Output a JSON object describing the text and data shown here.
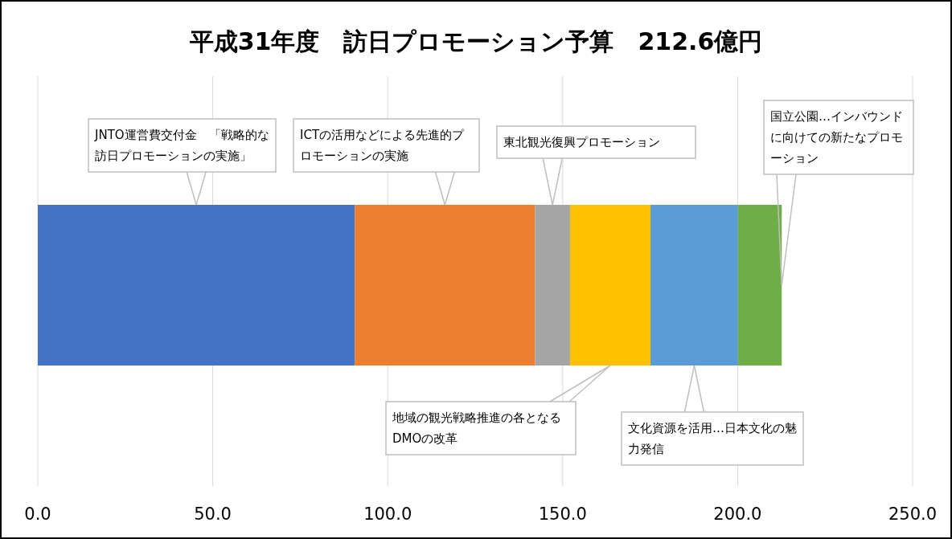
{
  "chart_data": {
    "type": "bar",
    "orientation": "horizontal",
    "stacked": true,
    "title": "平成31年度　訪日プロモーション予算　212.6億円",
    "categories": [
      null
    ],
    "series": [
      {
        "name": "JNTO運営費交付金　「戦略的な訪日プロモーションの実施」",
        "color": "#4472c4",
        "values": [
          90.6
        ]
      },
      {
        "name": "ICTの活用などによる先進的プロモーションの実施",
        "color": "#ed7d31",
        "values": [
          51.5
        ]
      },
      {
        "name": "東北観光復興プロモーション",
        "color": "#a5a5a5",
        "values": [
          10.0
        ]
      },
      {
        "name": "地域の観光戦略推進の各となるDMOの改革",
        "color": "#ffc000",
        "values": [
          23.0
        ]
      },
      {
        "name": "文化資源を活用…日本文化の魅力発信",
        "color": "#5b9bd5",
        "values": [
          25.0
        ]
      },
      {
        "name": "国立公園…インバウンドに向けての新たなプロモーション",
        "color": "#70ad47",
        "values": [
          12.5
        ]
      }
    ],
    "xlim": [
      0,
      250
    ],
    "xticks": [
      {
        "value": 0,
        "label": "0.0"
      },
      {
        "value": 50,
        "label": "50.0"
      },
      {
        "value": 100,
        "label": "100.0"
      },
      {
        "value": 150,
        "label": "150.0"
      },
      {
        "value": 200,
        "label": "200.0"
      },
      {
        "value": 250,
        "label": "250.0"
      }
    ],
    "grid": "x"
  }
}
